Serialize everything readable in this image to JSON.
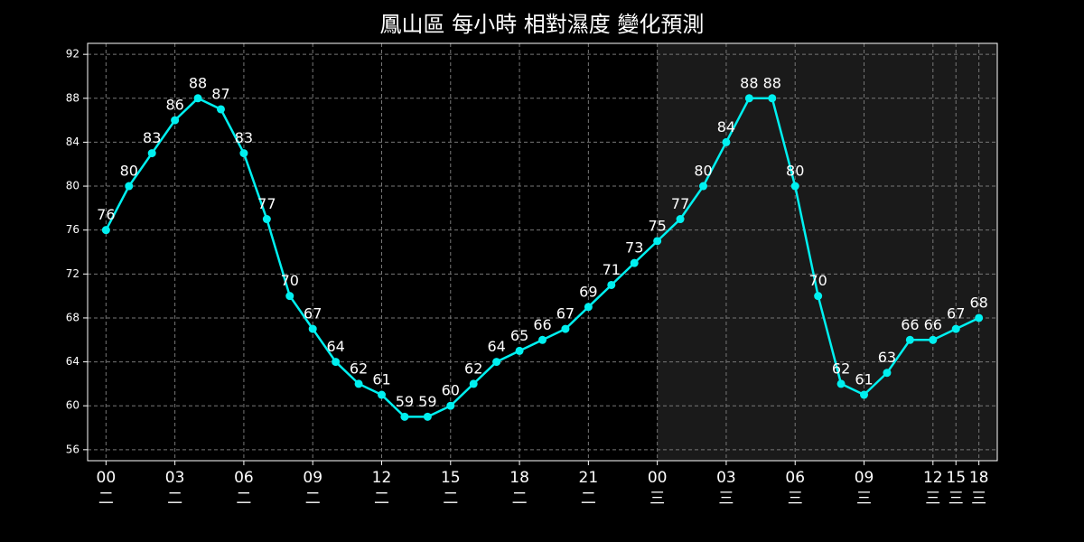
{
  "chart_data": {
    "type": "line",
    "title": "鳳山區 每小時 相對濕度 變化預測",
    "categories": [
      [
        "00",
        "二"
      ],
      null,
      null,
      [
        "03",
        "二"
      ],
      null,
      null,
      [
        "06",
        "二"
      ],
      null,
      null,
      [
        "09",
        "二"
      ],
      null,
      null,
      [
        "12",
        "二"
      ],
      null,
      null,
      [
        "15",
        "二"
      ],
      null,
      null,
      [
        "18",
        "二"
      ],
      null,
      null,
      [
        "21",
        "二"
      ],
      null,
      null,
      [
        "00",
        "三"
      ],
      null,
      null,
      [
        "03",
        "三"
      ],
      null,
      null,
      [
        "06",
        "三"
      ],
      null,
      null,
      [
        "09",
        "三"
      ],
      null,
      null,
      [
        "12",
        "三"
      ],
      [
        "15",
        "三"
      ],
      [
        "18",
        "三"
      ]
    ],
    "series": [
      {
        "color": "#00f0f0",
        "values": [
          76,
          80,
          83,
          86,
          88,
          87,
          83,
          77,
          70,
          67,
          64,
          62,
          61,
          59,
          59,
          60,
          62,
          64,
          65,
          66,
          67,
          69,
          71,
          73,
          75,
          77,
          80,
          84,
          88,
          88,
          80,
          70,
          62,
          61,
          63,
          66,
          66,
          67,
          68
        ]
      }
    ],
    "ylim": [
      55,
      93
    ],
    "yticks": [
      56,
      60,
      64,
      68,
      72,
      76,
      80,
      84,
      88,
      92
    ],
    "grid": true,
    "shade_from": 24,
    "shade_color": "#1a1a1a"
  }
}
